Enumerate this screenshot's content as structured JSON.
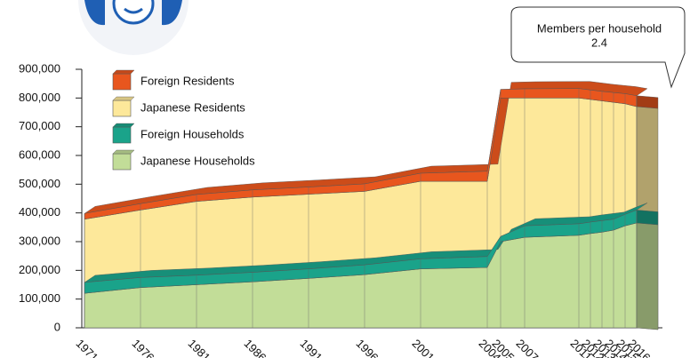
{
  "chart_data": {
    "type": "area",
    "categories": [
      "1971",
      "1976",
      "1981",
      "1986",
      "1991",
      "1996",
      "2001",
      "2004",
      "2005",
      "2007",
      "2011",
      "2012",
      "2013",
      "2014",
      "2015",
      "2016"
    ],
    "series": [
      {
        "name": "Foreign Residents",
        "color": "#e8561e",
        "values": [
          20000,
          22000,
          24000,
          25000,
          25000,
          26000,
          28000,
          35000,
          30000,
          32000,
          33000,
          33000,
          33000,
          34000,
          35000,
          38000
        ]
      },
      {
        "name": "Japanese Residents",
        "color": "#fde89a",
        "values": [
          378000,
          410000,
          440000,
          455000,
          465000,
          475000,
          510000,
          510000,
          800000,
          800000,
          800000,
          795000,
          790000,
          785000,
          780000,
          770000
        ]
      },
      {
        "name": "Foreign Households",
        "color": "#1aa38a",
        "values": [
          38000,
          35000,
          33000,
          33000,
          33000,
          34000,
          35000,
          38000,
          18000,
          40000,
          40000,
          40000,
          40000,
          38000,
          40000,
          45000
        ]
      },
      {
        "name": "Japanese Households",
        "color": "#c2dd98",
        "values": [
          120000,
          140000,
          150000,
          160000,
          172000,
          185000,
          205000,
          210000,
          300000,
          315000,
          322000,
          328000,
          333000,
          340000,
          355000,
          365000
        ]
      }
    ],
    "ylim": [
      0,
      900000
    ],
    "yticks": [
      0,
      {
        "value": 100000,
        "label": "100,000"
      },
      {
        "value": 200000,
        "label": "200,000"
      },
      {
        "value": 300000,
        "label": "300,000"
      },
      {
        "value": 400000,
        "label": "400,000"
      },
      {
        "value": 500000,
        "label": "500,000"
      },
      {
        "value": 600000,
        "label": "600,000"
      },
      {
        "value": 700000,
        "label": "700,000"
      },
      {
        "value": 800000,
        "label": "800,000"
      },
      {
        "value": 900000,
        "label": "900,000"
      }
    ],
    "annotation": {
      "title": "Members per household",
      "value": "2.4"
    }
  }
}
